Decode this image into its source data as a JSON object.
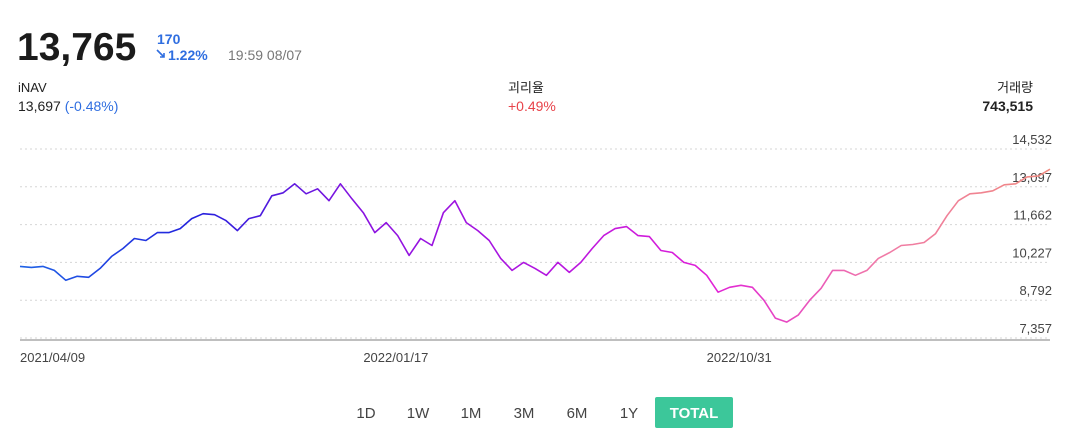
{
  "header": {
    "price": "13,765",
    "change": "170",
    "change_rate": "1.22%",
    "time": "19:59 08/07"
  },
  "stats": [
    {
      "label": "iNAV",
      "value": "13,697",
      "change": "(-0.48%)"
    },
    {
      "label": "괴리율",
      "value": "+0.49%"
    },
    {
      "label": "거래량",
      "value": "743,515"
    }
  ],
  "chart_data": {
    "type": "line",
    "categories": [
      "2021/04/09",
      null,
      null,
      null,
      null,
      null,
      null,
      null,
      null,
      null,
      null,
      null,
      null,
      null,
      null,
      null,
      null,
      null,
      null,
      null,
      null,
      null,
      null,
      null,
      null,
      null,
      null,
      null,
      null,
      null,
      "2022/01/17",
      null,
      null,
      null,
      null,
      null,
      null,
      null,
      null,
      null,
      null,
      null,
      null,
      null,
      null,
      null,
      null,
      null,
      null,
      null,
      null,
      null,
      null,
      null,
      null,
      null,
      null,
      null,
      null,
      null,
      "2022/10/31",
      null,
      null,
      null,
      null,
      null,
      null,
      null,
      null,
      null,
      null,
      null,
      null,
      null,
      null,
      null,
      null,
      null,
      null,
      null,
      null,
      null,
      null,
      null,
      null,
      null,
      null,
      null,
      null,
      null,
      null
    ],
    "values": [
      10076,
      10038,
      10076,
      9925,
      9547,
      9698,
      9660,
      10000,
      10453,
      10755,
      11133,
      11057,
      11359,
      11359,
      11511,
      11888,
      12077,
      12039,
      11813,
      11435,
      11888,
      12001,
      12757,
      12870,
      13210,
      12832,
      13021,
      12568,
      13210,
      12643,
      12115,
      11359,
      11737,
      11246,
      10491,
      11133,
      10869,
      12115,
      12568,
      11737,
      11435,
      11057,
      10378,
      9925,
      10227,
      10000,
      9736,
      10227,
      9849,
      10227,
      10755,
      11246,
      11511,
      11586,
      11246,
      11208,
      10680,
      10604,
      10227,
      10113,
      9736,
      9094,
      9283,
      9358,
      9283,
      8792,
      8112,
      7961,
      8225,
      8792,
      9245,
      9925,
      9925,
      9736,
      9925,
      10378,
      10604,
      10869,
      10906,
      10982,
      11322,
      12001,
      12568,
      12832,
      12870,
      12945,
      13172,
      13210,
      13474,
      13512,
      13765
    ],
    "line_gradient": [
      "#1f63e6",
      "#2222dd",
      "#8a12e0",
      "#b015e0",
      "#e020d8",
      "#f07aa8",
      "#f08a80"
    ],
    "ylim": [
      7357,
      14532
    ],
    "yticks": [
      {
        "value": 7357,
        "label": "7,357"
      },
      {
        "value": 8792,
        "label": "8,792"
      },
      {
        "value": 10227,
        "label": "10,227"
      },
      {
        "value": 11662,
        "label": "11,662"
      },
      {
        "value": 13097,
        "label": "13,097"
      },
      {
        "value": 14532,
        "label": "14,532"
      }
    ],
    "grid": true
  },
  "periods": [
    "1D",
    "1W",
    "1M",
    "3M",
    "6M",
    "1Y",
    "TOTAL"
  ],
  "active_period": "TOTAL"
}
